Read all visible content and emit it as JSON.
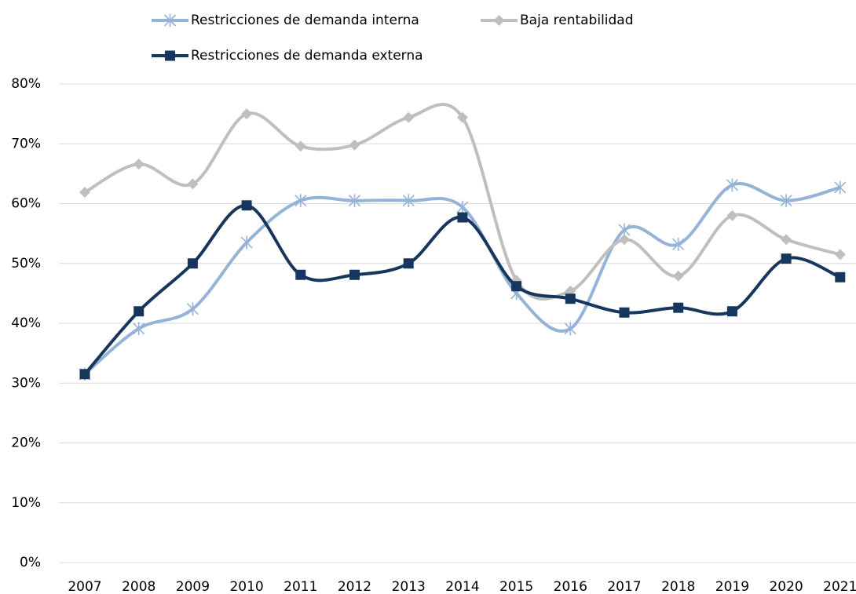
{
  "chart_data": {
    "type": "line",
    "categories": [
      "2007",
      "2008",
      "2009",
      "2010",
      "2011",
      "2012",
      "2013",
      "2014",
      "2015",
      "2016",
      "2017",
      "2018",
      "2019",
      "2020",
      "2021"
    ],
    "series": [
      {
        "name": "Restricciones de demanda interna",
        "color": "#95b3d7",
        "marker": "asterisk",
        "values": [
          31.5,
          39.1,
          42.4,
          53.5,
          60.5,
          60.5,
          60.5,
          59.4,
          45,
          39.1,
          55.6,
          53.2,
          63.1,
          60.5,
          62.7
        ]
      },
      {
        "name": "Baja rentabilidad",
        "color": "#bfbfbf",
        "marker": "diamond",
        "values": [
          61.9,
          66.6,
          63.3,
          75,
          69.6,
          69.8,
          74.4,
          74.4,
          47.2,
          45.4,
          54,
          47.9,
          58,
          54,
          51.5
        ]
      },
      {
        "name": "Restricciones de demanda externa",
        "color": "#17365d",
        "marker": "square",
        "values": [
          31.5,
          42,
          50,
          59.7,
          48.1,
          48.1,
          50,
          57.7,
          46.2,
          44.1,
          41.8,
          42.6,
          42,
          50.8,
          47.7
        ]
      }
    ],
    "ylim": [
      0,
      80
    ],
    "yticks": [
      {
        "value": 0,
        "label": "0%"
      },
      {
        "value": 10,
        "label": "10%"
      },
      {
        "value": 20,
        "label": "20%"
      },
      {
        "value": 30,
        "label": "30%"
      },
      {
        "value": 40,
        "label": "40%"
      },
      {
        "value": 50,
        "label": "50%"
      },
      {
        "value": 60,
        "label": "60%"
      },
      {
        "value": 70,
        "label": "70%"
      },
      {
        "value": 80,
        "label": "80%"
      }
    ],
    "grid": true,
    "legend": "top",
    "smooth": true
  }
}
